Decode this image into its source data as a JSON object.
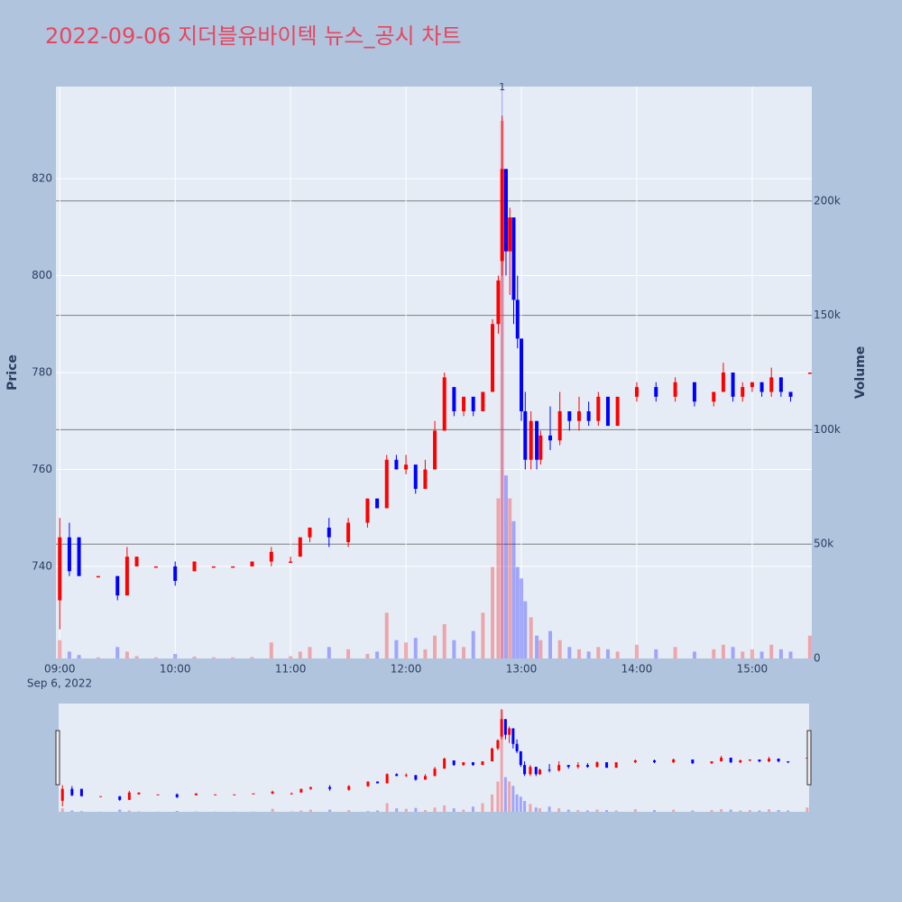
{
  "chart_data": {
    "type": "candlestick",
    "title": "2022-09-06 지더블유바이텍 뉴스_공시 차트",
    "yaxis_title": "Price",
    "y2axis_title": "Volume",
    "x_date_label": "Sep 6, 2022",
    "increasing_color": "#ff0000",
    "decreasing_color": "#0000ff",
    "x": [
      "09:00",
      "09:05",
      "09:10",
      "09:20",
      "09:30",
      "09:35",
      "09:40",
      "09:50",
      "10:00",
      "10:10",
      "10:20",
      "10:30",
      "10:40",
      "10:50",
      "11:00",
      "11:05",
      "11:10",
      "11:20",
      "11:30",
      "11:40",
      "11:45",
      "11:50",
      "11:55",
      "12:00",
      "12:05",
      "12:10",
      "12:15",
      "12:20",
      "12:25",
      "12:30",
      "12:35",
      "12:40",
      "12:45",
      "12:48",
      "12:50",
      "12:52",
      "12:54",
      "12:56",
      "12:58",
      "13:00",
      "13:02",
      "13:05",
      "13:08",
      "13:10",
      "13:15",
      "13:20",
      "13:25",
      "13:30",
      "13:35",
      "13:40",
      "13:45",
      "13:50",
      "14:00",
      "14:10",
      "14:20",
      "14:30",
      "14:40",
      "14:45",
      "14:50",
      "14:55",
      "15:00",
      "15:05",
      "15:10",
      "15:15",
      "15:20",
      "15:30"
    ],
    "open": [
      733,
      746,
      746,
      738,
      738,
      734,
      740,
      740,
      740,
      739,
      740,
      740,
      740,
      741,
      741,
      742,
      746,
      748,
      745,
      749,
      754,
      752,
      762,
      760,
      761,
      756,
      760,
      768,
      777,
      772,
      775,
      772,
      776,
      790,
      803,
      822,
      805,
      812,
      795,
      787,
      772,
      762,
      770,
      762,
      767,
      766,
      772,
      770,
      772,
      770,
      775,
      769,
      775,
      777,
      775,
      778,
      774,
      776,
      780,
      775,
      777,
      778,
      776,
      779,
      776,
      780
    ],
    "high": [
      750,
      749,
      746,
      738,
      738,
      744,
      742,
      740,
      741,
      741,
      740,
      740,
      741,
      744,
      742,
      746,
      748,
      750,
      750,
      754,
      754,
      763,
      763,
      763,
      761,
      762,
      770,
      780,
      777,
      775,
      775,
      776,
      791,
      800,
      833,
      822,
      814,
      812,
      800,
      787,
      776,
      772,
      770,
      768,
      773,
      776,
      772,
      775,
      774,
      776,
      775,
      775,
      778,
      778,
      779,
      778,
      776,
      782,
      780,
      778,
      778,
      778,
      781,
      779,
      776,
      780
    ],
    "low": [
      727,
      738,
      738,
      738,
      733,
      734,
      740,
      740,
      736,
      739,
      740,
      740,
      740,
      740,
      741,
      742,
      745,
      744,
      744,
      748,
      752,
      752,
      760,
      759,
      755,
      756,
      760,
      768,
      771,
      771,
      771,
      772,
      776,
      788,
      800,
      800,
      796,
      790,
      785,
      770,
      760,
      760,
      760,
      761,
      764,
      765,
      768,
      768,
      769,
      769,
      769,
      769,
      774,
      774,
      774,
      773,
      773,
      776,
      774,
      774,
      776,
      775,
      775,
      775,
      774,
      780
    ],
    "close": [
      746,
      739,
      738,
      738,
      734,
      742,
      742,
      740,
      737,
      741,
      740,
      740,
      741,
      743,
      741,
      746,
      748,
      746,
      749,
      754,
      752,
      762,
      760,
      761,
      756,
      760,
      768,
      779,
      772,
      775,
      772,
      776,
      790,
      799,
      822,
      805,
      812,
      795,
      787,
      772,
      762,
      770,
      762,
      767,
      766,
      772,
      770,
      772,
      770,
      775,
      769,
      775,
      777,
      775,
      778,
      774,
      776,
      780,
      775,
      777,
      778,
      776,
      779,
      776,
      775,
      780
    ],
    "volume": [
      8000,
      3000,
      1500,
      500,
      5000,
      3000,
      1000,
      500,
      2000,
      800,
      500,
      500,
      600,
      7000,
      1000,
      3000,
      5000,
      5000,
      4000,
      2000,
      3000,
      20000,
      8000,
      7000,
      9000,
      4000,
      10000,
      15000,
      8000,
      5000,
      12000,
      20000,
      40000,
      70000,
      235000,
      80000,
      70000,
      60000,
      40000,
      35000,
      25000,
      18000,
      10000,
      8000,
      12000,
      8000,
      5000,
      4000,
      3000,
      5000,
      4000,
      3000,
      6000,
      4000,
      5000,
      3000,
      4000,
      6000,
      5000,
      3000,
      4000,
      3000,
      6000,
      4000,
      3000,
      10000
    ],
    "xlim": [
      "08:58",
      "15:31"
    ],
    "xticks": [
      "09:00",
      "10:00",
      "11:00",
      "12:00",
      "13:00",
      "14:00",
      "15:00"
    ],
    "ylim": [
      721,
      839
    ],
    "yticks": [
      740,
      760,
      780,
      800,
      820
    ],
    "y2lim": [
      0,
      250000
    ],
    "y2ticks": [
      0,
      {
        "value": 50000,
        "label": "50k"
      },
      {
        "value": 100000,
        "label": "100k"
      },
      {
        "value": 150000,
        "label": "150k"
      },
      {
        "value": 200000,
        "label": "200k"
      }
    ],
    "annotation": {
      "x": "12:50",
      "text": "1"
    }
  }
}
